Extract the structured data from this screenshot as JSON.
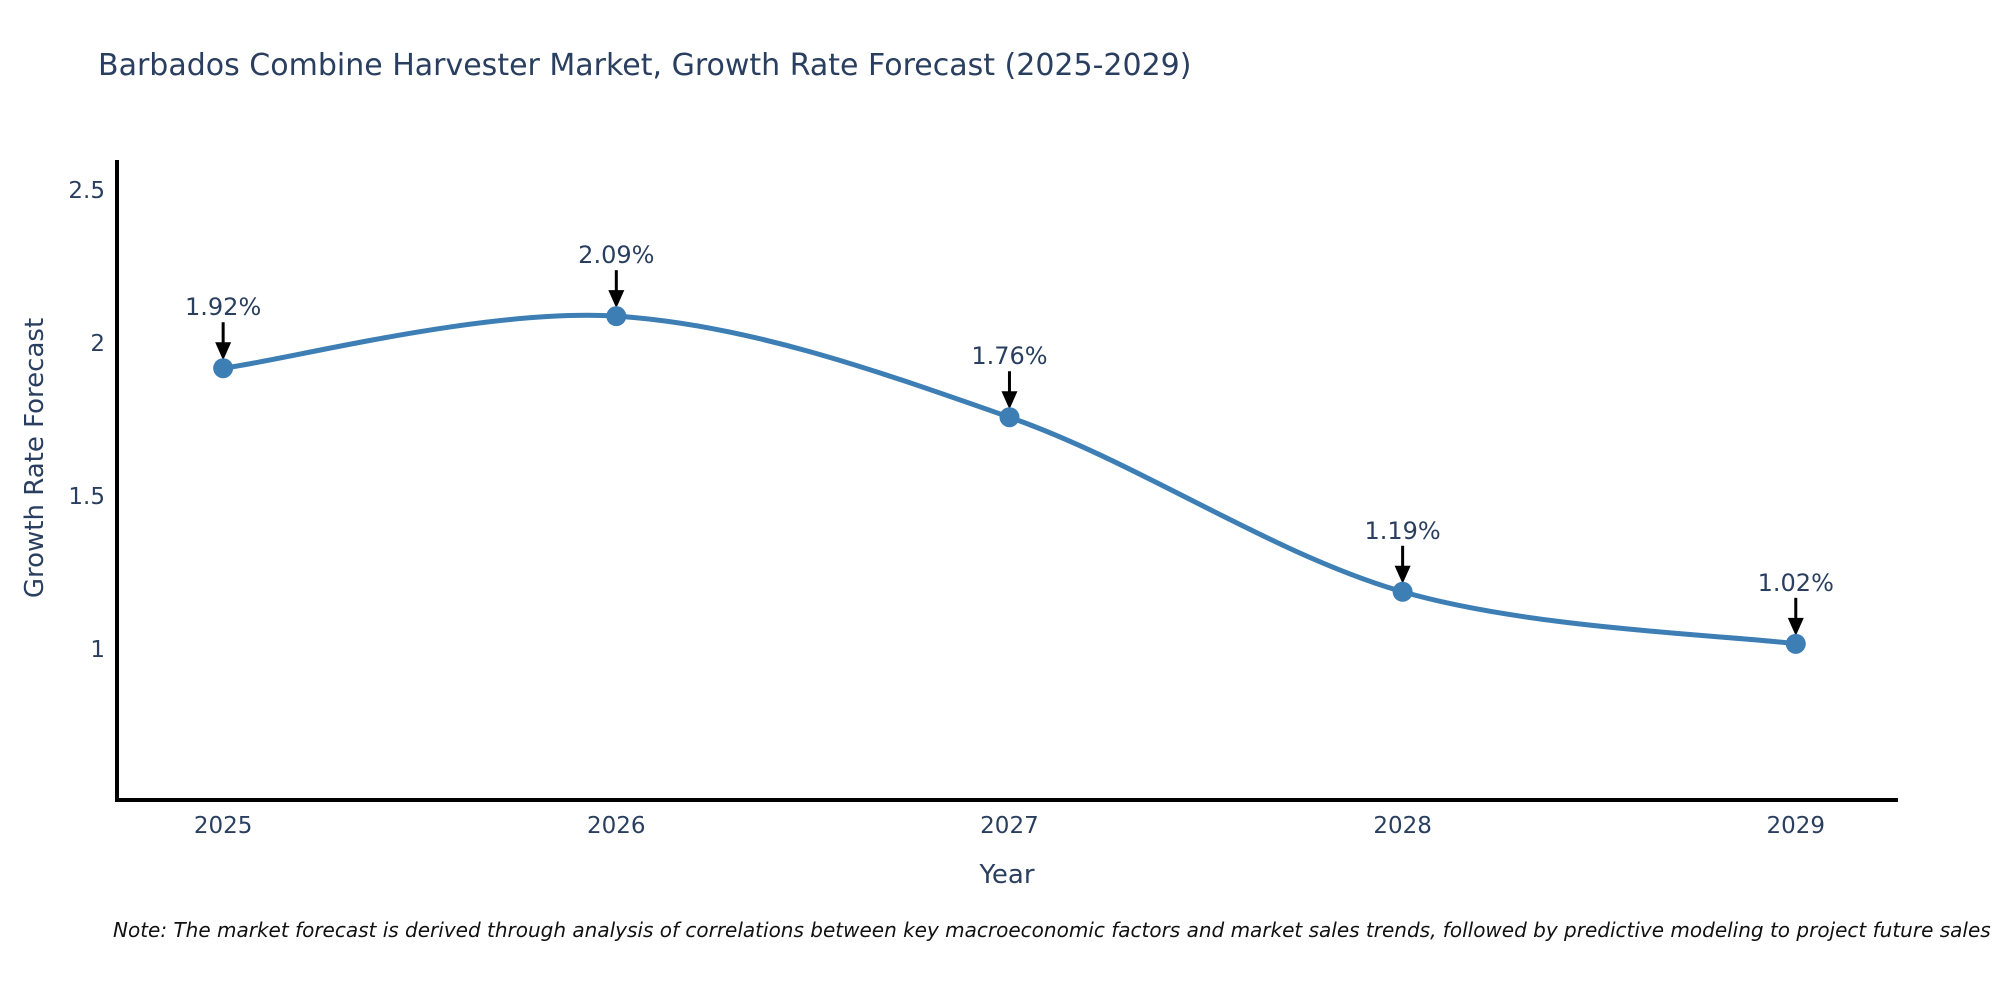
{
  "page": {
    "background": "#ffffff"
  },
  "chart_data": {
    "type": "line",
    "title": "Barbados Combine Harvester Market, Growth Rate Forecast (2025-2029)",
    "xlabel": "Year",
    "ylabel": "Growth Rate Forecast",
    "x": [
      2025,
      2026,
      2027,
      2028,
      2029
    ],
    "series": [
      {
        "name": "Growth Rate Forecast",
        "values": [
          1.92,
          2.09,
          1.76,
          1.19,
          1.02
        ]
      }
    ],
    "point_labels": [
      "1.92%",
      "2.09%",
      "1.76%",
      "1.19%",
      "1.02%"
    ],
    "xtick_labels": [
      "2025",
      "2026",
      "2027",
      "2028",
      "2029"
    ],
    "ytick_values": [
      2.5,
      2,
      1.5,
      1
    ],
    "ytick_labels": [
      "2.5",
      "2",
      "1.5",
      "1"
    ],
    "xlim": [
      2024.73,
      2029.26
    ],
    "ylim": [
      0.51,
      2.6
    ],
    "grid": false,
    "legend": "none",
    "line_shape": "spline",
    "colors": {
      "line": "#3d7eb5",
      "marker": "#3d7eb5",
      "text": "#2a3f5f",
      "axis": "#000000",
      "arrow": "#000000",
      "note": "#111111"
    },
    "note": "Note: The market forecast is derived through analysis of correlations between key macroeconomic factors and market sales trends, followed by predictive modeling to project future sales"
  }
}
